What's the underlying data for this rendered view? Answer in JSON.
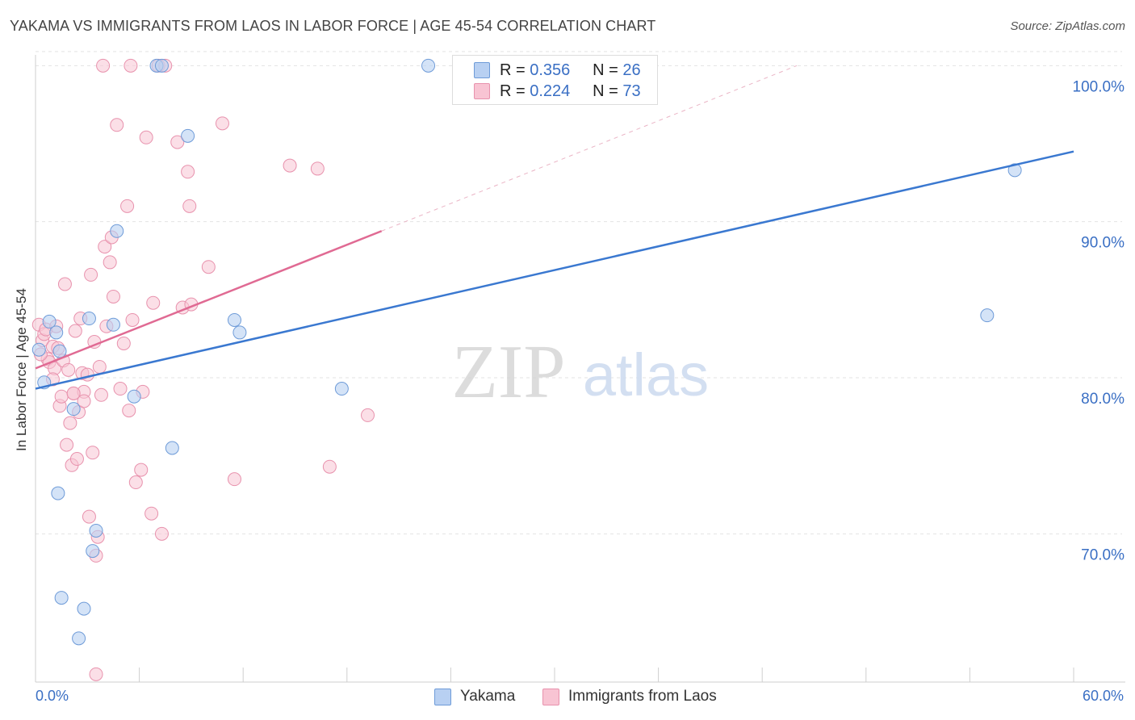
{
  "title": "YAKAMA VS IMMIGRANTS FROM LAOS IN LABOR FORCE | AGE 45-54 CORRELATION CHART",
  "source": "Source: ZipAtlas.com",
  "watermark": {
    "zip": "ZIP",
    "atlas": "atlas"
  },
  "legend": {
    "r_label": "R =",
    "n_label": "N =",
    "series": [
      {
        "name": "Yakama",
        "r": "0.356",
        "n": "26"
      },
      {
        "name": "Immigrants from Laos",
        "r": "0.224",
        "n": "73"
      }
    ]
  },
  "colors": {
    "yakama_fill": "#b8d0f2",
    "yakama_stroke": "#6e9bd8",
    "yakama_line": "#3a78d0",
    "laos_fill": "#f8c4d3",
    "laos_stroke": "#e892ad",
    "laos_line": "#e06a93",
    "tick_text": "#3a6fc4"
  },
  "chart_data": {
    "type": "scatter",
    "title": "YAKAMA VS IMMIGRANTS FROM LAOS IN LABOR FORCE | AGE 45-54 CORRELATION CHART",
    "xlabel": "",
    "ylabel": "In Labor Force | Age 45-54",
    "xlim": [
      0,
      60
    ],
    "ylim": [
      60.5,
      101
    ],
    "x_tick_labels": [
      {
        "value": 0,
        "label": "0.0%"
      },
      {
        "value": 60,
        "label": "60.0%"
      }
    ],
    "y_tick_labels": [
      {
        "value": 100,
        "label": "100.0%"
      },
      {
        "value": 90,
        "label": "90.0%"
      },
      {
        "value": 80,
        "label": "80.0%"
      },
      {
        "value": 70,
        "label": "70.0%"
      }
    ],
    "series": [
      {
        "name": "Yakama",
        "points": [
          [
            0.2,
            81.8
          ],
          [
            0.5,
            79.7
          ],
          [
            0.8,
            83.6
          ],
          [
            1.2,
            82.9
          ],
          [
            1.4,
            81.7
          ],
          [
            1.3,
            72.6
          ],
          [
            1.5,
            65.9
          ],
          [
            2.2,
            78.0
          ],
          [
            2.5,
            63.3
          ],
          [
            2.8,
            65.2
          ],
          [
            3.1,
            83.8
          ],
          [
            3.3,
            68.9
          ],
          [
            3.5,
            70.2
          ],
          [
            4.5,
            83.4
          ],
          [
            4.7,
            89.4
          ],
          [
            5.7,
            78.8
          ],
          [
            7.0,
            100
          ],
          [
            7.3,
            100
          ],
          [
            7.9,
            75.5
          ],
          [
            8.8,
            95.5
          ],
          [
            11.5,
            83.7
          ],
          [
            11.8,
            82.9
          ],
          [
            17.7,
            79.3
          ],
          [
            22.7,
            100
          ],
          [
            55.0,
            84.0
          ],
          [
            56.6,
            93.3
          ]
        ],
        "trend": {
          "x": [
            0,
            60
          ],
          "y": [
            79.3,
            94.5
          ]
        }
      },
      {
        "name": "Immigrants from Laos",
        "points": [
          [
            0.2,
            83.4
          ],
          [
            0.4,
            82.4
          ],
          [
            0.5,
            82.8
          ],
          [
            0.6,
            83.1
          ],
          [
            0.7,
            81.2
          ],
          [
            0.8,
            81.0
          ],
          [
            1.0,
            82.0
          ],
          [
            1.1,
            80.6
          ],
          [
            1.2,
            83.3
          ],
          [
            1.3,
            81.9
          ],
          [
            1.4,
            78.2
          ],
          [
            1.5,
            78.8
          ],
          [
            1.6,
            81.1
          ],
          [
            1.7,
            86.0
          ],
          [
            1.8,
            75.7
          ],
          [
            1.9,
            80.5
          ],
          [
            2.0,
            77.1
          ],
          [
            2.1,
            74.4
          ],
          [
            2.2,
            79.0
          ],
          [
            2.3,
            83.0
          ],
          [
            2.4,
            74.8
          ],
          [
            2.5,
            77.8
          ],
          [
            2.6,
            83.8
          ],
          [
            2.7,
            80.3
          ],
          [
            2.8,
            79.1
          ],
          [
            3.0,
            80.2
          ],
          [
            3.1,
            71.1
          ],
          [
            3.2,
            86.6
          ],
          [
            3.3,
            75.2
          ],
          [
            3.4,
            82.3
          ],
          [
            3.5,
            68.6
          ],
          [
            3.6,
            69.8
          ],
          [
            3.7,
            80.7
          ],
          [
            3.8,
            78.9
          ],
          [
            3.9,
            100
          ],
          [
            4.0,
            88.4
          ],
          [
            4.1,
            83.3
          ],
          [
            4.3,
            87.4
          ],
          [
            4.4,
            89.0
          ],
          [
            4.5,
            85.2
          ],
          [
            4.7,
            96.2
          ],
          [
            4.9,
            79.3
          ],
          [
            5.1,
            82.2
          ],
          [
            5.3,
            91.0
          ],
          [
            5.4,
            77.9
          ],
          [
            5.5,
            100
          ],
          [
            5.6,
            83.7
          ],
          [
            5.8,
            73.3
          ],
          [
            6.1,
            74.1
          ],
          [
            6.2,
            79.1
          ],
          [
            6.4,
            95.4
          ],
          [
            6.7,
            71.3
          ],
          [
            6.8,
            84.8
          ],
          [
            7.1,
            100
          ],
          [
            7.3,
            70.0
          ],
          [
            7.5,
            100
          ],
          [
            8.2,
            95.1
          ],
          [
            8.5,
            84.5
          ],
          [
            8.8,
            93.2
          ],
          [
            8.9,
            91.0
          ],
          [
            9.0,
            84.7
          ],
          [
            10.0,
            87.1
          ],
          [
            10.8,
            96.3
          ],
          [
            11.5,
            73.5
          ],
          [
            14.7,
            93.6
          ],
          [
            16.3,
            93.4
          ],
          [
            17.0,
            74.3
          ],
          [
            19.2,
            77.6
          ],
          [
            3.5,
            61.0
          ],
          [
            2.8,
            78.5
          ],
          [
            1.0,
            79.9
          ],
          [
            0.3,
            81.5
          ],
          [
            2.2,
            79.0
          ]
        ],
        "trend": {
          "x": [
            0,
            20
          ],
          "y": [
            80.6,
            89.4
          ]
        },
        "trend_extension": {
          "x": [
            20,
            44
          ],
          "y": [
            89.4,
            100
          ]
        }
      }
    ]
  }
}
